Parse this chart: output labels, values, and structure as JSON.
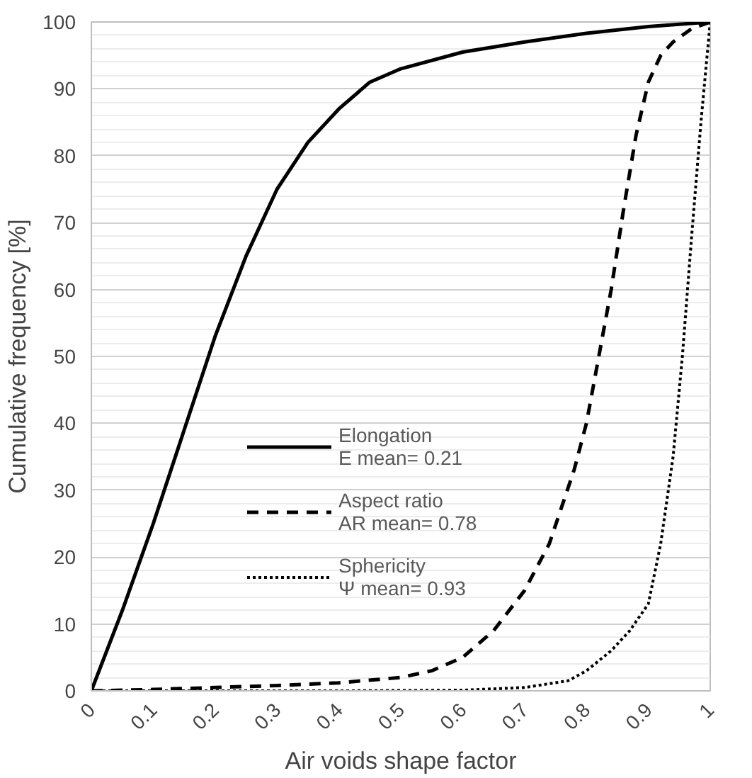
{
  "chart_data": {
    "type": "line",
    "xlabel": "Air voids shape factor",
    "ylabel": "Cumulative frequency [%]",
    "xlim": [
      0,
      1
    ],
    "ylim": [
      0,
      100
    ],
    "xticks": [
      0,
      0.1,
      0.2,
      0.3,
      0.4,
      0.5,
      0.6,
      0.7,
      0.8,
      0.9,
      1
    ],
    "yticks": [
      0,
      10,
      20,
      30,
      40,
      50,
      60,
      70,
      80,
      90,
      100
    ],
    "grid": "y",
    "legend": "center",
    "marker": "none",
    "series": [
      {
        "name": "Elongation\nE mean= 0.21",
        "color": "#000000",
        "line_style": "solid",
        "x": [
          0,
          0.05,
          0.1,
          0.15,
          0.2,
          0.25,
          0.3,
          0.35,
          0.4,
          0.45,
          0.5,
          0.6,
          0.7,
          0.8,
          0.9,
          1
        ],
        "values": [
          0,
          12,
          25,
          39,
          53,
          65,
          75,
          82,
          87,
          91,
          93,
          95.5,
          97,
          98.3,
          99.3,
          100
        ]
      },
      {
        "name": "Aspect ratio\nAR mean= 0.78",
        "color": "#000000",
        "line_style": "dashed",
        "x": [
          0,
          0.1,
          0.2,
          0.3,
          0.4,
          0.5,
          0.55,
          0.6,
          0.65,
          0.7,
          0.74,
          0.78,
          0.8,
          0.82,
          0.84,
          0.86,
          0.88,
          0.9,
          0.92,
          0.94,
          0.97,
          1
        ],
        "values": [
          0,
          0.2,
          0.5,
          0.8,
          1.2,
          2,
          3,
          5,
          9,
          15,
          22,
          33,
          40,
          50,
          60,
          72,
          83,
          91,
          95,
          97,
          99,
          100
        ]
      },
      {
        "name": "Sphericity\nΨ mean= 0.93",
        "color": "#000000",
        "line_style": "dotted",
        "x": [
          0,
          0.2,
          0.4,
          0.6,
          0.7,
          0.77,
          0.8,
          0.84,
          0.87,
          0.9,
          0.92,
          0.94,
          0.955,
          0.97,
          0.985,
          1
        ],
        "values": [
          0,
          0,
          0,
          0.1,
          0.5,
          1.5,
          3,
          6,
          9,
          13,
          22,
          35,
          50,
          68,
          85,
          100
        ]
      }
    ]
  }
}
